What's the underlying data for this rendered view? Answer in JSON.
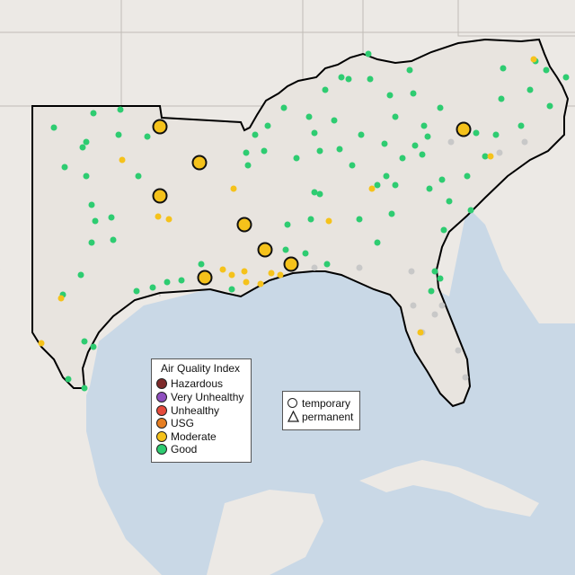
{
  "legend": {
    "title": "Air Quality Index",
    "categories": [
      {
        "label": "Hazardous",
        "color": "#7e2a2a"
      },
      {
        "label": "Very Unhealthy",
        "color": "#8f4fbf"
      },
      {
        "label": "Unhealthy",
        "color": "#e54b3c"
      },
      {
        "label": "USG",
        "color": "#e67e22"
      },
      {
        "label": "Moderate",
        "color": "#f5c21b"
      },
      {
        "label": "Good",
        "color": "#2ecc71"
      }
    ],
    "types": [
      {
        "label": "temporary",
        "shape": "circle"
      },
      {
        "label": "permanent",
        "shape": "triangle"
      }
    ]
  },
  "colors": {
    "water": "#c9d8e6",
    "land": "#e8e4df",
    "outside_land": "#ece9e5",
    "region_outline": "#000000",
    "state_lines": "#c0bcb6",
    "no_data": "#c8c8c8"
  },
  "sites": {
    "good": [
      [
        60,
        142
      ],
      [
        104,
        126
      ],
      [
        134,
        122
      ],
      [
        96,
        158
      ],
      [
        92,
        164
      ],
      [
        132,
        150
      ],
      [
        164,
        152
      ],
      [
        72,
        186
      ],
      [
        96,
        196
      ],
      [
        154,
        196
      ],
      [
        102,
        228
      ],
      [
        106,
        246
      ],
      [
        124,
        242
      ],
      [
        126,
        267
      ],
      [
        102,
        270
      ],
      [
        90,
        306
      ],
      [
        70,
        328
      ],
      [
        152,
        324
      ],
      [
        170,
        320
      ],
      [
        186,
        314
      ],
      [
        202,
        312
      ],
      [
        224,
        294
      ],
      [
        258,
        322
      ],
      [
        94,
        380
      ],
      [
        104,
        386
      ],
      [
        76,
        422
      ],
      [
        94,
        432
      ],
      [
        274,
        170
      ],
      [
        276,
        184
      ],
      [
        284,
        150
      ],
      [
        298,
        140
      ],
      [
        316,
        120
      ],
      [
        344,
        130
      ],
      [
        350,
        148
      ],
      [
        356,
        168
      ],
      [
        378,
        166
      ],
      [
        392,
        184
      ],
      [
        350,
        214
      ],
      [
        356,
        216
      ],
      [
        346,
        244
      ],
      [
        320,
        250
      ],
      [
        318,
        278
      ],
      [
        340,
        282
      ],
      [
        364,
        294
      ],
      [
        400,
        244
      ],
      [
        420,
        270
      ],
      [
        430,
        196
      ],
      [
        440,
        206
      ],
      [
        436,
        238
      ],
      [
        478,
        210
      ],
      [
        492,
        200
      ],
      [
        520,
        196
      ],
      [
        524,
        234
      ],
      [
        530,
        148
      ],
      [
        540,
        174
      ],
      [
        552,
        150
      ],
      [
        558,
        110
      ],
      [
        580,
        140
      ],
      [
        590,
        100
      ],
      [
        612,
        118
      ],
      [
        608,
        78
      ],
      [
        596,
        68
      ],
      [
        630,
        86
      ],
      [
        560,
        76
      ],
      [
        410,
        60
      ],
      [
        380,
        86
      ],
      [
        388,
        88
      ],
      [
        456,
        78
      ],
      [
        412,
        88
      ],
      [
        460,
        104
      ],
      [
        434,
        106
      ],
      [
        472,
        140
      ],
      [
        490,
        120
      ],
      [
        428,
        160
      ],
      [
        402,
        150
      ],
      [
        440,
        130
      ],
      [
        362,
        100
      ],
      [
        372,
        134
      ],
      [
        330,
        176
      ],
      [
        294,
        168
      ],
      [
        500,
        224
      ],
      [
        494,
        256
      ],
      [
        490,
        310
      ],
      [
        484,
        302
      ],
      [
        480,
        324
      ],
      [
        448,
        176
      ],
      [
        470,
        172
      ],
      [
        476,
        152
      ],
      [
        462,
        162
      ],
      [
        420,
        206
      ]
    ],
    "nodata": [
      [
        350,
        298
      ],
      [
        400,
        298
      ],
      [
        458,
        302
      ],
      [
        460,
        340
      ],
      [
        484,
        350
      ],
      [
        492,
        340
      ],
      [
        470,
        370
      ],
      [
        510,
        390
      ],
      [
        518,
        420
      ],
      [
        556,
        170
      ],
      [
        584,
        158
      ],
      [
        502,
        158
      ]
    ],
    "moderate_small": [
      [
        136,
        178
      ],
      [
        176,
        241
      ],
      [
        188,
        244
      ],
      [
        260,
        210
      ],
      [
        248,
        300
      ],
      [
        258,
        306
      ],
      [
        272,
        302
      ],
      [
        274,
        314
      ],
      [
        290,
        316
      ],
      [
        302,
        304
      ],
      [
        312,
        306
      ],
      [
        366,
        246
      ],
      [
        414,
        210
      ],
      [
        68,
        332
      ],
      [
        46,
        382
      ],
      [
        468,
        370
      ],
      [
        546,
        174
      ],
      [
        594,
        66
      ]
    ],
    "moderate_large": [
      [
        178,
        141
      ],
      [
        222,
        181
      ],
      [
        178,
        218
      ],
      [
        272,
        250
      ],
      [
        295,
        278
      ],
      [
        324,
        294
      ],
      [
        228,
        309
      ],
      [
        516,
        144
      ]
    ]
  }
}
